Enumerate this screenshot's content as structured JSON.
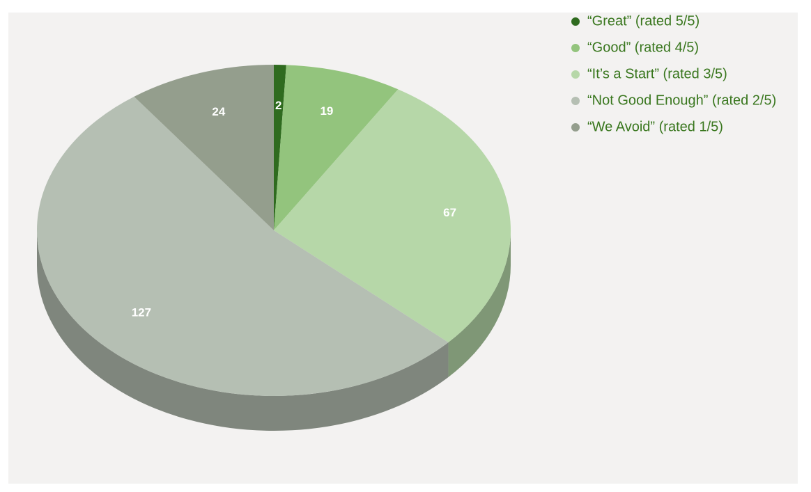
{
  "chart_data": {
    "type": "pie",
    "start_angle": 0,
    "direction": "clockwise",
    "three_d": true,
    "categories": [
      "“Great” (rated 5/5)",
      "“Good” (rated 4/5)",
      "“It’s a Start” (rated 3/5)",
      "“Not Good Enough” (rated 2/5)",
      "“We Avoid” (rated 1/5)"
    ],
    "values": [
      2,
      19,
      67,
      127,
      24
    ],
    "colors": [
      "#2f6b1f",
      "#93c47d",
      "#b6d7a8",
      "#b5bfb3",
      "#949e8d"
    ],
    "legend": "top-right"
  }
}
